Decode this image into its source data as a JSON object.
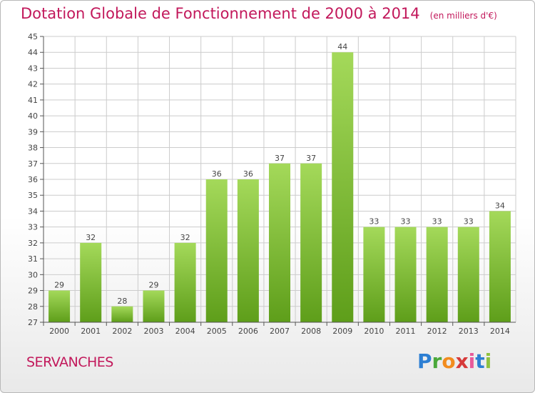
{
  "title": "Dotation Globale de Fonctionnement de 2000 à 2014",
  "unit_note": "(en milliers d'€)",
  "commune": "SERVANCHES",
  "logo": {
    "text": "Proxiti"
  },
  "colors": {
    "title": "#c2185b",
    "bar_top": "#a4d95a",
    "bar_bottom": "#5e9e1a",
    "grid": "#cccccc"
  },
  "chart_data": {
    "type": "bar",
    "title": "Dotation Globale de Fonctionnement de 2000 à 2014",
    "subtitle": "(en milliers d'€)",
    "xlabel": "",
    "ylabel": "",
    "categories": [
      "2000",
      "2001",
      "2002",
      "2003",
      "2004",
      "2005",
      "2006",
      "2007",
      "2008",
      "2009",
      "2010",
      "2011",
      "2012",
      "2013",
      "2014"
    ],
    "values": [
      29,
      32,
      28,
      29,
      32,
      36,
      36,
      37,
      37,
      44,
      33,
      33,
      33,
      33,
      34
    ],
    "ylim": [
      27,
      45
    ],
    "yticks": [
      27,
      28,
      29,
      30,
      31,
      32,
      33,
      34,
      35,
      36,
      37,
      38,
      39,
      40,
      41,
      42,
      43,
      44,
      45
    ],
    "grid": true,
    "data_labels": true
  }
}
